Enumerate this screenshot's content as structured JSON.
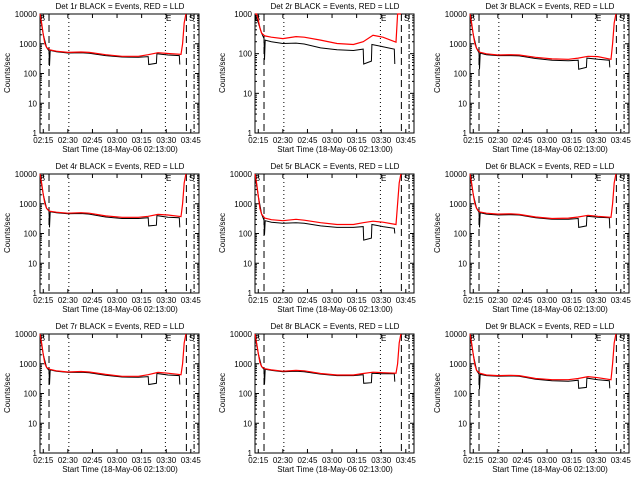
{
  "chart_data": {
    "type": "line",
    "layout": "3x3 grid",
    "xlabel": "Start Time (18-May-06 02:13:00)",
    "ylabel": "Counts/sec",
    "yscale": "log",
    "x_units": "minutes since 02:13:00",
    "xlim": [
      0,
      97
    ],
    "x_ticks": [
      2,
      17,
      32,
      47,
      62,
      77,
      92
    ],
    "x_tick_labels": [
      "02:15",
      "02:30",
      "02:45",
      "03:00",
      "03:15",
      "03:30",
      "03:45"
    ],
    "markers": {
      "dashed": [
        5.5,
        89.3
      ],
      "dotted": [
        17.6,
        76.5
      ],
      "dashdot": [
        94
      ],
      "labels": [
        {
          "text": "B",
          "t": 1.5
        },
        {
          "text": "E",
          "t": 78.5
        },
        {
          "text": "S",
          "t": 92.5
        }
      ]
    },
    "legend": "in title: BLACK = Events, RED = LLD",
    "colors": {
      "events": "#000000",
      "lld": "#ff0000"
    },
    "red_t": [
      0,
      1,
      2,
      3,
      4,
      6,
      10,
      17,
      25,
      30,
      40,
      50,
      60,
      66,
      72,
      78,
      86,
      87,
      88,
      89
    ],
    "black_t": [
      0,
      2,
      4,
      5.5,
      5.8,
      6.2,
      10,
      17,
      25,
      30,
      40,
      50,
      60,
      66,
      66.3,
      71,
      71.3,
      78,
      85,
      85.3
    ],
    "panels": [
      {
        "title": "Det 1r BLACK = Events, RED = LLD",
        "ylim": [
          1,
          10000
        ],
        "y_tick_labels": [
          "1",
          "10",
          "100",
          "1000",
          "10000"
        ],
        "red": [
          10000,
          5000,
          2000,
          1000,
          750,
          620,
          560,
          510,
          530,
          510,
          430,
          380,
          380,
          430,
          500,
          470,
          440,
          1000,
          5000,
          10000
        ],
        "black": [
          10000,
          2000,
          750,
          580,
          180,
          600,
          540,
          490,
          500,
          480,
          400,
          360,
          350,
          370,
          200,
          220,
          460,
          420,
          400,
          200
        ]
      },
      {
        "title": "Det 2r BLACK = Events, RED = LLD",
        "ylim": [
          1,
          1000
        ],
        "y_tick_labels": [
          "1",
          "10",
          "100",
          "1000"
        ],
        "red": [
          1000,
          1000,
          700,
          450,
          330,
          280,
          260,
          240,
          270,
          260,
          220,
          180,
          170,
          200,
          290,
          260,
          195,
          1000,
          1000,
          1000
        ],
        "black": [
          1000,
          600,
          330,
          240,
          70,
          220,
          200,
          180,
          185,
          175,
          140,
          125,
          120,
          130,
          55,
          65,
          170,
          150,
          130,
          55
        ]
      },
      {
        "title": "Det 3r BLACK = Events, RED = LLD",
        "ylim": [
          1,
          10000
        ],
        "y_tick_labels": [
          "1",
          "10",
          "100",
          "1000",
          "10000"
        ],
        "red": [
          10000,
          5000,
          2000,
          1000,
          700,
          520,
          460,
          420,
          430,
          420,
          350,
          310,
          300,
          330,
          380,
          370,
          300,
          1000,
          5000,
          10000
        ],
        "black": [
          10000,
          2000,
          700,
          500,
          140,
          480,
          430,
          400,
          400,
          390,
          320,
          280,
          270,
          280,
          140,
          160,
          330,
          300,
          280,
          160
        ]
      },
      {
        "title": "Det 4r BLACK = Events, RED = LLD",
        "ylim": [
          1,
          10000
        ],
        "y_tick_labels": [
          "1",
          "10",
          "100",
          "1000",
          "10000"
        ],
        "red": [
          10000,
          5000,
          2000,
          1000,
          700,
          560,
          520,
          480,
          500,
          480,
          390,
          350,
          350,
          380,
          440,
          420,
          370,
          1000,
          5000,
          10000
        ],
        "black": [
          10000,
          2000,
          700,
          560,
          160,
          540,
          500,
          460,
          470,
          450,
          360,
          320,
          320,
          340,
          180,
          190,
          400,
          350,
          340,
          160
        ]
      },
      {
        "title": "Det 5r BLACK = Events, RED = LLD",
        "ylim": [
          1,
          10000
        ],
        "y_tick_labels": [
          "1",
          "10",
          "100",
          "1000",
          "10000"
        ],
        "red": [
          10000,
          5000,
          1800,
          700,
          450,
          330,
          290,
          270,
          300,
          280,
          230,
          200,
          200,
          230,
          260,
          240,
          200,
          1000,
          5000,
          10000
        ],
        "black": [
          10000,
          1800,
          450,
          280,
          90,
          270,
          240,
          220,
          230,
          220,
          180,
          160,
          160,
          170,
          60,
          70,
          200,
          170,
          150,
          100
        ]
      },
      {
        "title": "Det 6r BLACK = Events, RED = LLD",
        "ylim": [
          1,
          10000
        ],
        "y_tick_labels": [
          "1",
          "10",
          "100",
          "1000",
          "10000"
        ],
        "red": [
          10000,
          5000,
          2000,
          1000,
          700,
          530,
          480,
          450,
          460,
          440,
          360,
          320,
          330,
          360,
          410,
          380,
          350,
          1000,
          5000,
          10000
        ],
        "black": [
          10000,
          2000,
          700,
          520,
          160,
          500,
          450,
          420,
          430,
          420,
          340,
          300,
          300,
          320,
          160,
          180,
          380,
          350,
          340,
          150
        ]
      },
      {
        "title": "Det 7r BLACK = Events, RED = LLD",
        "ylim": [
          1,
          10000
        ],
        "y_tick_labels": [
          "1",
          "10",
          "100",
          "1000",
          "10000"
        ],
        "red": [
          10000,
          5000,
          2000,
          1000,
          750,
          650,
          580,
          530,
          550,
          530,
          440,
          380,
          380,
          430,
          510,
          480,
          430,
          1000,
          5000,
          10000
        ],
        "black": [
          10000,
          2000,
          750,
          600,
          200,
          620,
          560,
          510,
          520,
          500,
          410,
          360,
          350,
          370,
          200,
          220,
          470,
          420,
          400,
          200
        ]
      },
      {
        "title": "Det 8r BLACK = Events, RED = LLD",
        "ylim": [
          1,
          10000
        ],
        "y_tick_labels": [
          "1",
          "10",
          "100",
          "1000",
          "10000"
        ],
        "red": [
          10000,
          5000,
          2200,
          1100,
          800,
          680,
          620,
          560,
          600,
          580,
          470,
          420,
          420,
          470,
          520,
          500,
          480,
          1000,
          5000,
          10000
        ],
        "black": [
          10000,
          2200,
          800,
          650,
          200,
          650,
          600,
          540,
          560,
          540,
          450,
          400,
          400,
          430,
          220,
          230,
          480,
          460,
          460,
          250
        ]
      },
      {
        "title": "Det 9r BLACK = Events, RED = LLD",
        "ylim": [
          1,
          10000
        ],
        "y_tick_labels": [
          "1",
          "10",
          "100",
          "1000",
          "10000"
        ],
        "red": [
          10000,
          5000,
          2000,
          900,
          600,
          480,
          420,
          400,
          410,
          400,
          320,
          290,
          290,
          320,
          370,
          340,
          290,
          1000,
          5000,
          10000
        ],
        "black": [
          10000,
          2000,
          600,
          450,
          140,
          440,
          400,
          380,
          390,
          380,
          300,
          270,
          260,
          280,
          150,
          160,
          330,
          290,
          270,
          150
        ]
      }
    ]
  }
}
